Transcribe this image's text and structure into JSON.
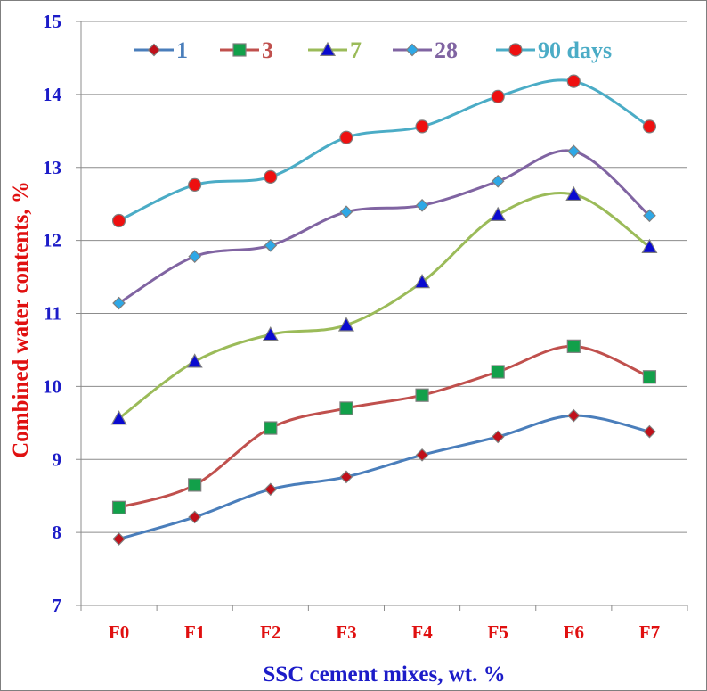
{
  "chart_data": {
    "type": "line",
    "xlabel": "SSC cement mixes, wt. %",
    "ylabel": "Combined water contents, %",
    "categories": [
      "F0",
      "F1",
      "F2",
      "F3",
      "F4",
      "F5",
      "F6",
      "F7"
    ],
    "ylim": [
      7,
      15
    ],
    "yticks": [
      7,
      8,
      9,
      10,
      11,
      12,
      13,
      14,
      15
    ],
    "grid": true,
    "legend_position": "top",
    "series": [
      {
        "name": "1",
        "marker": "diamond",
        "color": "#4a7ebb",
        "marker_color": "#c0101a",
        "values": [
          7.91,
          8.21,
          8.59,
          8.76,
          9.06,
          9.31,
          9.6,
          9.38
        ]
      },
      {
        "name": "3",
        "marker": "square",
        "color": "#c0504d",
        "marker_color": "#12a04a",
        "values": [
          8.34,
          8.65,
          9.43,
          9.7,
          9.88,
          10.2,
          10.55,
          10.13
        ]
      },
      {
        "name": "7",
        "marker": "triangle",
        "color": "#9bbb59",
        "marker_color": "#0a0ad0",
        "values": [
          9.56,
          10.34,
          10.71,
          10.84,
          11.43,
          12.35,
          12.63,
          11.91
        ]
      },
      {
        "name": "28",
        "marker": "diamond",
        "color": "#8064a2",
        "marker_color": "#2ea8e6",
        "values": [
          11.14,
          11.78,
          11.93,
          12.39,
          12.48,
          12.81,
          13.22,
          12.34
        ]
      },
      {
        "name": "90 days",
        "marker": "circle",
        "color": "#4bacc6",
        "marker_color": "#ee1010",
        "values": [
          12.27,
          12.76,
          12.87,
          13.41,
          13.56,
          13.97,
          14.18,
          13.56
        ]
      }
    ]
  }
}
